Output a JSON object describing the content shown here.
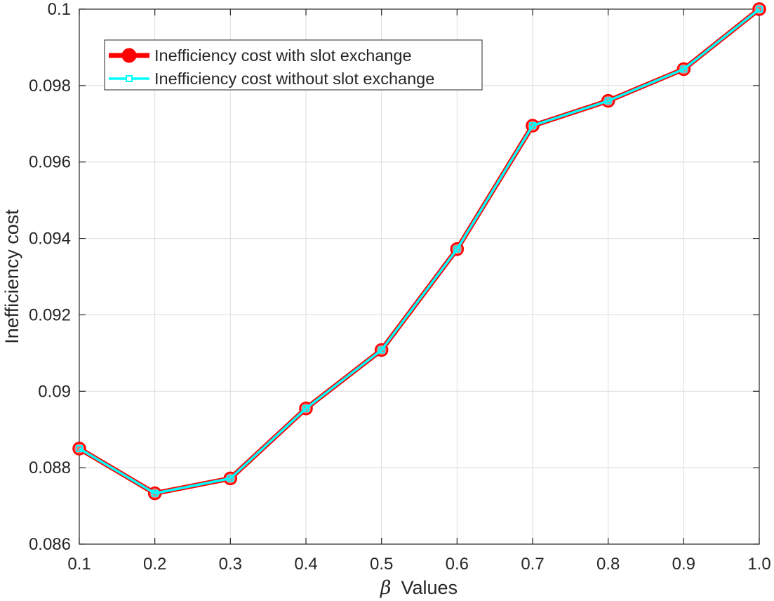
{
  "chart_data": {
    "type": "line",
    "title": "",
    "xlabel_symbol": "β",
    "xlabel_text": "Values",
    "ylabel": "Inefficiency cost",
    "x": [
      0.1,
      0.2,
      0.3,
      0.4,
      0.5,
      0.6,
      0.7,
      0.8,
      0.9,
      1.0
    ],
    "xticks": [
      "0.1",
      "0.2",
      "0.3",
      "0.4",
      "0.5",
      "0.6",
      "0.7",
      "0.8",
      "0.9",
      "1.0"
    ],
    "yticks": [
      "0.086",
      "0.088",
      "0.09",
      "0.092",
      "0.094",
      "0.096",
      "0.098",
      "0.1"
    ],
    "xlim": [
      0.1,
      1.0
    ],
    "ylim": [
      0.086,
      0.1
    ],
    "grid": true,
    "legend_position": "top-left",
    "series": [
      {
        "name": "Inefficiency cost with slot exchange",
        "color": "#ff0000",
        "marker": "circle",
        "values": [
          0.0885,
          0.08733,
          0.08772,
          0.08955,
          0.09108,
          0.09372,
          0.09695,
          0.0976,
          0.09843,
          0.1
        ]
      },
      {
        "name": "Inefficiency cost without slot exchange",
        "color": "#00ffff",
        "marker": "square",
        "values": [
          0.0885,
          0.08733,
          0.08772,
          0.08955,
          0.09108,
          0.09372,
          0.09695,
          0.0976,
          0.09843,
          0.1
        ]
      }
    ]
  }
}
